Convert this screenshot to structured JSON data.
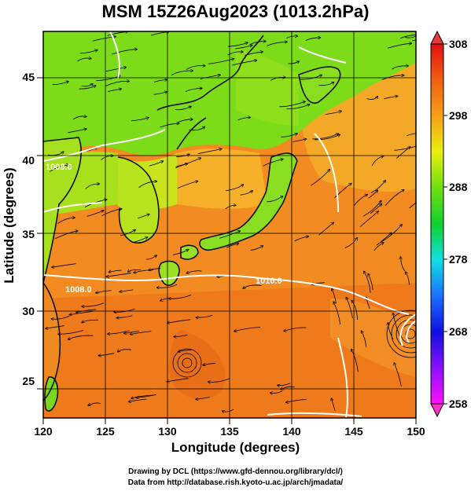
{
  "title": "MSM 15Z26Aug2023 (1013.2hPa)",
  "xlabel": "Longitude (degrees)",
  "ylabel": "Latitude  (degrees)",
  "credit_line1": "Drawing by DCL (https://www.gfd-dennou.org/library/dcl/)",
  "credit_line2": "Data from http://database.rish.kyoto-u.ac.jp/arch/jmadata/",
  "map": {
    "lon_range": [
      120,
      150
    ],
    "lat_range": [
      22.4,
      47.6
    ],
    "x_ticks": [
      "120",
      "125",
      "130",
      "135",
      "140",
      "145",
      "150"
    ],
    "y_ticks": [
      "25",
      "30",
      "35",
      "40",
      "45"
    ],
    "isobar_labels": [
      "1008.0",
      "1008.0",
      "1010.0"
    ]
  },
  "colorbar": {
    "ticks": [
      "308",
      "298",
      "288",
      "278",
      "268",
      "258"
    ],
    "min": 258,
    "max": 308
  },
  "colors": {
    "warm": "#f08a1e",
    "cool": "#6fe01a",
    "coast": "#111111",
    "isobar": "#ffffff"
  }
}
